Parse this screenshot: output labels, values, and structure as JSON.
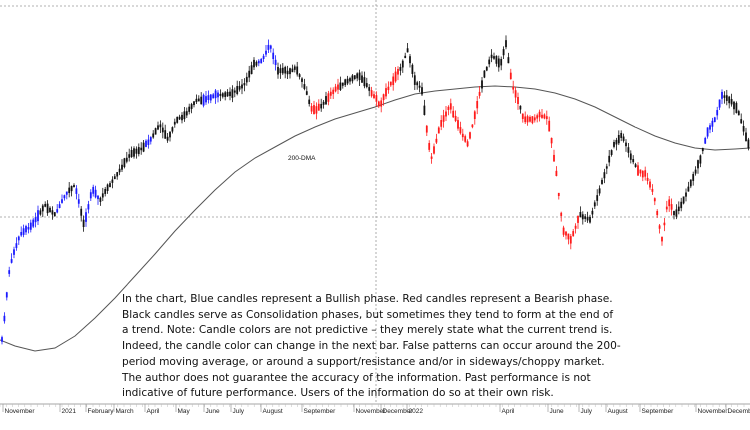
{
  "chart_data": {
    "type": "candlestick",
    "grid": false,
    "annotations": [
      {
        "text": "200-DMA"
      }
    ],
    "x_tick_labels": [
      "November",
      "2021",
      "February",
      "March",
      "April",
      "May",
      "June",
      "July",
      "August",
      "September",
      "November",
      "December",
      "2022",
      "April",
      "June",
      "July",
      "August",
      "September",
      "November",
      "December"
    ],
    "phase_colors": {
      "bullish": "#1a1aff",
      "bearish": "#ff1a1a",
      "consolidation": "#111111"
    },
    "ma_color": "#555555",
    "dashed_line_color": "#999999",
    "note": "In the chart, Blue candles represent a Bullish phase. Red candles represent a Bearish phase. Black candles serve as Consolidation phases, but sometimes they tend to form at the end of a trend. Note: Candle colors are not predictive – they merely state what the current trend is. Indeed, the candle color can change in the next bar. False patterns can occur around the 200-period moving average, or around a support/resistance and/or in sideways/choppy market. The author does not guarantee the accuracy of the information. Past performance is not indicative of future performance. Users of the information do so at their own risk."
  }
}
